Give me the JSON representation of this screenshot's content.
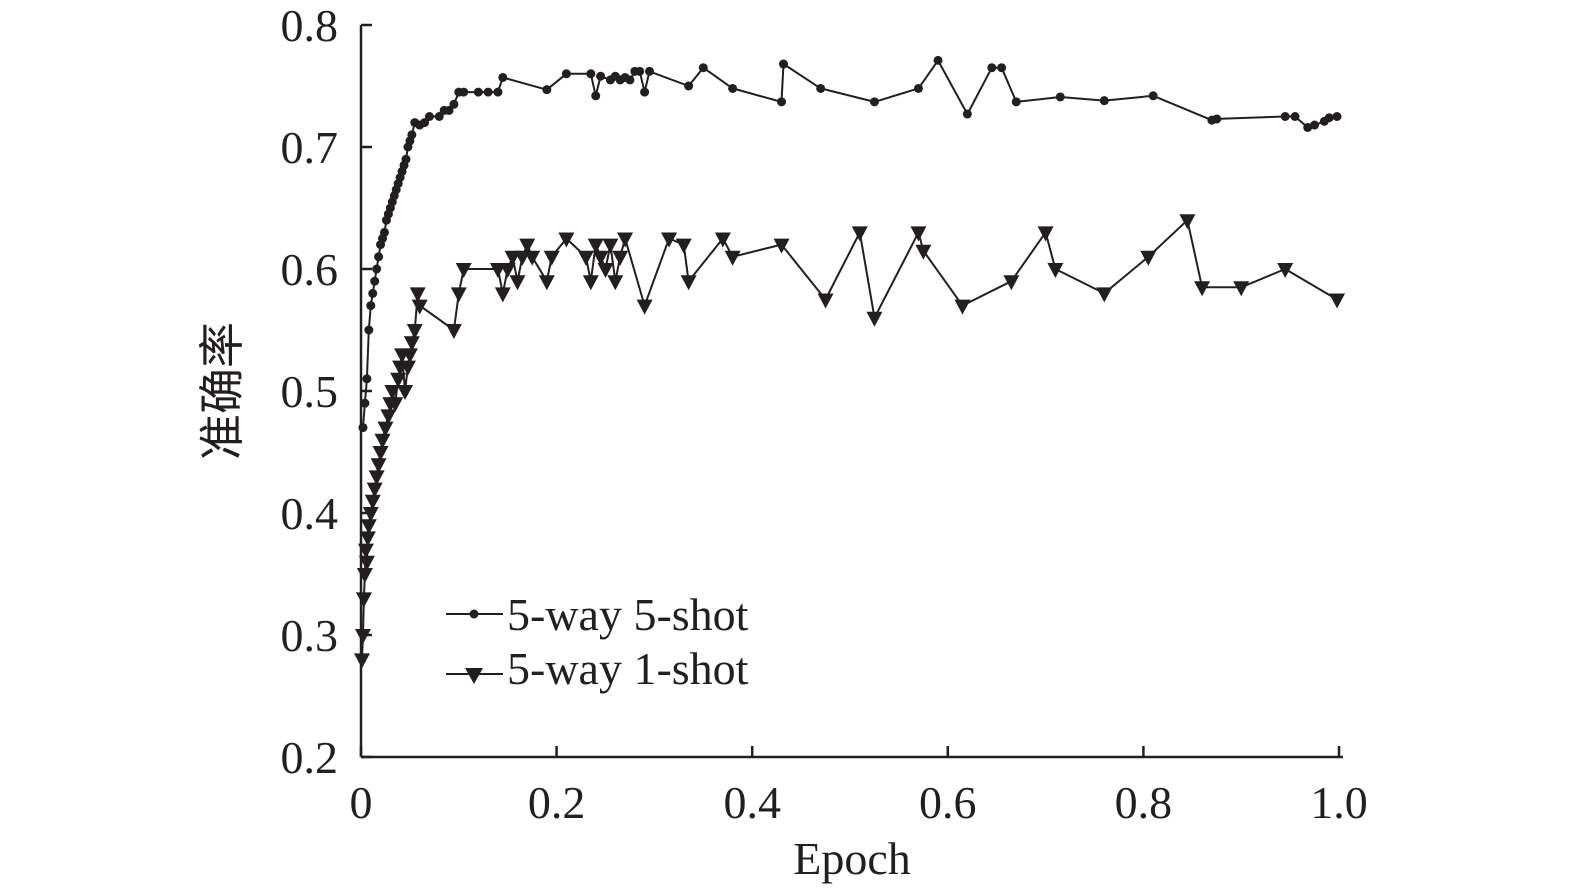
{
  "chart_data": {
    "type": "line",
    "xlabel": "Epoch",
    "ylabel": "准确率",
    "xlim": [
      0,
      1.0
    ],
    "ylim": [
      0.2,
      0.8
    ],
    "x_ticks": [
      "0",
      "0.2",
      "0.4",
      "0.6",
      "0.8",
      "1.0"
    ],
    "y_ticks": [
      "0.2",
      "0.3",
      "0.4",
      "0.5",
      "0.6",
      "0.7",
      "0.8"
    ],
    "grid": false,
    "legend_position": "bottom-left",
    "colors": {
      "line": "#231f20",
      "background": "#ffffff"
    },
    "series": [
      {
        "name": "5-way 5-shot",
        "marker": "circle",
        "x": [
          0.002,
          0.004,
          0.006,
          0.008,
          0.01,
          0.012,
          0.014,
          0.016,
          0.018,
          0.02,
          0.022,
          0.024,
          0.026,
          0.028,
          0.03,
          0.032,
          0.034,
          0.036,
          0.038,
          0.04,
          0.042,
          0.044,
          0.046,
          0.048,
          0.05,
          0.052,
          0.055,
          0.06,
          0.065,
          0.07,
          0.08,
          0.085,
          0.09,
          0.095,
          0.1,
          0.105,
          0.12,
          0.13,
          0.14,
          0.145,
          0.19,
          0.21,
          0.235,
          0.24,
          0.245,
          0.255,
          0.26,
          0.265,
          0.27,
          0.275,
          0.28,
          0.285,
          0.29,
          0.295,
          0.335,
          0.35,
          0.38,
          0.43,
          0.432,
          0.47,
          0.525,
          0.57,
          0.59,
          0.62,
          0.645,
          0.655,
          0.67,
          0.715,
          0.76,
          0.81,
          0.87,
          0.875,
          0.945,
          0.955,
          0.968,
          0.975,
          0.985,
          0.99,
          0.998
        ],
        "y": [
          0.47,
          0.49,
          0.51,
          0.55,
          0.57,
          0.58,
          0.59,
          0.6,
          0.61,
          0.62,
          0.625,
          0.63,
          0.64,
          0.645,
          0.65,
          0.655,
          0.66,
          0.665,
          0.67,
          0.675,
          0.68,
          0.685,
          0.69,
          0.7,
          0.705,
          0.71,
          0.72,
          0.718,
          0.72,
          0.725,
          0.725,
          0.73,
          0.73,
          0.735,
          0.745,
          0.745,
          0.745,
          0.745,
          0.745,
          0.757,
          0.747,
          0.76,
          0.76,
          0.742,
          0.758,
          0.755,
          0.758,
          0.755,
          0.757,
          0.755,
          0.762,
          0.762,
          0.745,
          0.762,
          0.75,
          0.765,
          0.748,
          0.737,
          0.768,
          0.748,
          0.737,
          0.748,
          0.771,
          0.727,
          0.765,
          0.765,
          0.737,
          0.741,
          0.738,
          0.742,
          0.722,
          0.723,
          0.725,
          0.725,
          0.716,
          0.718,
          0.721,
          0.724,
          0.725
        ]
      },
      {
        "name": "5-way 1-shot",
        "marker": "triangle-down",
        "x": [
          0.001,
          0.002,
          0.003,
          0.004,
          0.005,
          0.006,
          0.007,
          0.008,
          0.01,
          0.012,
          0.014,
          0.016,
          0.018,
          0.02,
          0.022,
          0.025,
          0.028,
          0.03,
          0.032,
          0.035,
          0.038,
          0.04,
          0.042,
          0.045,
          0.048,
          0.05,
          0.052,
          0.055,
          0.058,
          0.06,
          0.095,
          0.1,
          0.105,
          0.14,
          0.145,
          0.15,
          0.155,
          0.16,
          0.165,
          0.17,
          0.175,
          0.19,
          0.195,
          0.21,
          0.23,
          0.235,
          0.24,
          0.245,
          0.25,
          0.255,
          0.26,
          0.265,
          0.27,
          0.29,
          0.315,
          0.33,
          0.335,
          0.37,
          0.38,
          0.43,
          0.475,
          0.51,
          0.525,
          0.57,
          0.575,
          0.615,
          0.665,
          0.7,
          0.71,
          0.76,
          0.805,
          0.845,
          0.86,
          0.9,
          0.945,
          0.998
        ],
        "y": [
          0.28,
          0.3,
          0.33,
          0.35,
          0.37,
          0.36,
          0.38,
          0.39,
          0.4,
          0.41,
          0.42,
          0.43,
          0.44,
          0.45,
          0.46,
          0.47,
          0.48,
          0.49,
          0.5,
          0.49,
          0.51,
          0.52,
          0.53,
          0.5,
          0.52,
          0.53,
          0.54,
          0.55,
          0.58,
          0.57,
          0.55,
          0.58,
          0.6,
          0.6,
          0.58,
          0.6,
          0.61,
          0.59,
          0.61,
          0.62,
          0.61,
          0.59,
          0.61,
          0.625,
          0.61,
          0.59,
          0.62,
          0.61,
          0.6,
          0.62,
          0.59,
          0.61,
          0.625,
          0.57,
          0.625,
          0.62,
          0.59,
          0.625,
          0.61,
          0.62,
          0.575,
          0.63,
          0.56,
          0.63,
          0.615,
          0.57,
          0.59,
          0.63,
          0.6,
          0.58,
          0.61,
          0.64,
          0.585,
          0.585,
          0.6,
          0.575
        ]
      }
    ]
  }
}
